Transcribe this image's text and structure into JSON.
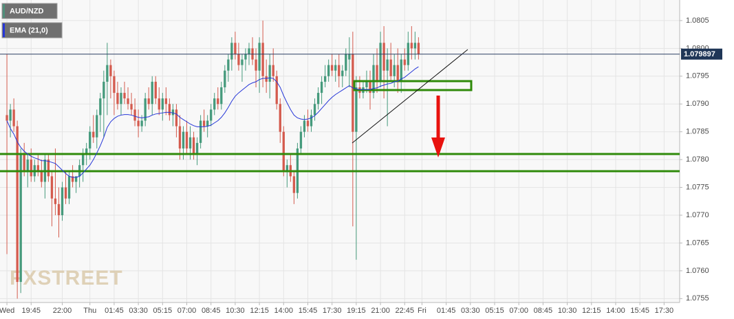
{
  "chart_data": {
    "type": "candlestick",
    "watermark": "FXSTREET",
    "x": [
      0,
      1,
      2,
      3,
      4,
      5,
      6,
      7,
      8,
      9,
      10,
      11,
      12,
      13,
      14,
      15,
      16,
      17,
      18,
      19,
      20,
      21,
      22,
      23,
      24,
      25,
      26,
      27,
      28,
      29,
      30,
      31,
      32,
      33,
      34,
      35,
      36,
      37,
      38,
      39,
      40,
      41,
      42,
      43,
      44,
      45,
      46,
      47,
      48,
      49,
      50,
      51,
      52,
      53,
      54,
      55,
      56,
      57,
      58,
      59,
      60,
      61,
      62,
      63,
      64,
      65,
      66,
      67,
      68,
      69,
      70,
      71,
      72,
      73,
      74,
      75,
      76,
      77,
      78,
      79,
      80,
      81,
      82,
      83,
      84,
      85,
      86,
      87,
      88,
      89,
      90,
      91,
      92,
      93,
      94,
      95,
      96,
      97,
      98,
      99,
      100,
      101,
      102,
      103,
      104,
      105,
      106,
      107,
      108,
      109,
      110,
      111,
      112,
      113,
      114,
      115,
      116,
      117,
      118,
      119
    ],
    "xlim": [
      -2,
      194.5
    ],
    "xticks": [
      {
        "value": 0,
        "label": "Wed"
      },
      {
        "value": 7,
        "label": "19:45"
      },
      {
        "value": 16,
        "label": "22:00"
      },
      {
        "value": 24,
        "label": "Thu"
      },
      {
        "value": 31,
        "label": "01:45"
      },
      {
        "value": 38,
        "label": "03:30"
      },
      {
        "value": 45,
        "label": "05:15"
      },
      {
        "value": 52,
        "label": "07:00"
      },
      {
        "value": 59,
        "label": "08:45"
      },
      {
        "value": 66,
        "label": "10:30"
      },
      {
        "value": 73,
        "label": "12:15"
      },
      {
        "value": 80,
        "label": "14:00"
      },
      {
        "value": 87,
        "label": "15:45"
      },
      {
        "value": 94,
        "label": "17:30"
      },
      {
        "value": 101,
        "label": "19:15"
      },
      {
        "value": 108,
        "label": "21:00"
      },
      {
        "value": 115,
        "label": "22:45"
      },
      {
        "value": 120,
        "label": "Fri"
      },
      {
        "value": 127,
        "label": "01:45"
      },
      {
        "value": 134,
        "label": "03:30"
      },
      {
        "value": 141,
        "label": "05:15"
      },
      {
        "value": 148,
        "label": "07:00"
      },
      {
        "value": 155,
        "label": "08:45"
      },
      {
        "value": 162,
        "label": "10:30"
      },
      {
        "value": 169,
        "label": "12:15"
      },
      {
        "value": 176,
        "label": "14:00"
      },
      {
        "value": 183,
        "label": "15:45"
      },
      {
        "value": 190,
        "label": "17:30"
      }
    ],
    "ylim": [
      1.07543,
      1.08087
    ],
    "yticks": [
      1.0755,
      {
        "value": 1.076,
        "label": "1.0760"
      },
      1.0765,
      {
        "value": 1.077,
        "label": "1.0770"
      },
      1.0775,
      {
        "value": 1.078,
        "label": "1.0780"
      },
      1.0785,
      {
        "value": 1.079,
        "label": "1.0790"
      },
      1.0795,
      {
        "value": 1.08,
        "label": "1.0800"
      },
      1.0805
    ],
    "grid": true,
    "last_price": 1.079897,
    "series": [
      {
        "name": "AUD/NZD",
        "color": "#4f8f7a",
        "color_up": "#459a7c",
        "color_down": "#d45b4e",
        "open": [
          1.0788,
          1.0787,
          1.0789,
          1.0786,
          1.0758,
          1.0781,
          1.0778,
          1.078,
          1.0777,
          1.0779,
          1.0778,
          1.0776,
          1.078,
          1.0777,
          1.0773,
          1.0772,
          1.077,
          1.0775,
          1.0773,
          1.0777,
          1.0776,
          1.0777,
          1.0779,
          1.0781,
          1.0782,
          1.0785,
          1.0784,
          1.0788,
          1.0791,
          1.0794,
          1.0797,
          1.0795,
          1.0792,
          1.079,
          1.0792,
          1.0791,
          1.079,
          1.0789,
          1.0787,
          1.0786,
          1.0787,
          1.0791,
          1.079,
          1.0794,
          1.0791,
          1.0789,
          1.0791,
          1.079,
          1.0788,
          1.0789,
          1.0786,
          1.0782,
          1.0785,
          1.0782,
          1.0784,
          1.0781,
          1.0783,
          1.0787,
          1.0786,
          1.0787,
          1.0789,
          1.0791,
          1.079,
          1.0793,
          1.0796,
          1.0798,
          1.0801,
          1.0799,
          1.0797,
          1.0798,
          1.0799,
          1.08,
          1.0798,
          1.0796,
          1.0801,
          1.0795,
          1.0794,
          1.0797,
          1.0795,
          1.079,
          1.0785,
          1.0778,
          1.0779,
          1.0777,
          1.0774,
          1.0782,
          1.0785,
          1.0787,
          1.0786,
          1.0788,
          1.079,
          1.0792,
          1.0794,
          1.0795,
          1.0797,
          1.0796,
          1.0797,
          1.0795,
          1.0796,
          1.0798,
          1.0799,
          1.0785,
          1.0793,
          1.0792,
          1.0793,
          1.0794,
          1.0792,
          1.0797,
          1.0794,
          1.0801,
          1.0796,
          1.0798,
          1.0795,
          1.0797,
          1.0794,
          1.0798,
          1.0797,
          1.0801,
          1.08,
          1.0801
        ],
        "high": [
          1.0799,
          1.079,
          1.0791,
          1.0787,
          1.0782,
          1.0783,
          1.0781,
          1.0782,
          1.078,
          1.0781,
          1.078,
          1.0781,
          1.0781,
          1.0778,
          1.0782,
          1.0775,
          1.0776,
          1.0778,
          1.0778,
          1.0779,
          1.0777,
          1.078,
          1.0782,
          1.0783,
          1.0786,
          1.0788,
          1.0789,
          1.0792,
          1.0796,
          1.0801,
          1.0798,
          1.0796,
          1.0794,
          1.0793,
          1.0794,
          1.0793,
          1.0792,
          1.0791,
          1.0789,
          1.0788,
          1.0792,
          1.0793,
          1.0795,
          1.0795,
          1.0793,
          1.0792,
          1.0793,
          1.0791,
          1.079,
          1.079,
          1.0788,
          1.0786,
          1.0787,
          1.0786,
          1.0785,
          1.0784,
          1.0788,
          1.0789,
          1.0788,
          1.079,
          1.0792,
          1.0793,
          1.0794,
          1.0797,
          1.0799,
          1.0802,
          1.0803,
          1.0801,
          1.0799,
          1.08,
          1.0801,
          1.0802,
          1.08,
          1.0802,
          1.0805,
          1.0798,
          1.0799,
          1.08,
          1.0796,
          1.0791,
          1.0786,
          1.078,
          1.0781,
          1.0778,
          1.0783,
          1.0786,
          1.0788,
          1.0789,
          1.0789,
          1.0791,
          1.0793,
          1.0795,
          1.0797,
          1.0798,
          1.0799,
          1.0798,
          1.0799,
          1.0797,
          1.08,
          1.0802,
          1.0803,
          1.0795,
          1.0795,
          1.0794,
          1.0796,
          1.0796,
          1.0799,
          1.08,
          1.0803,
          1.0804,
          1.08,
          1.0801,
          1.0799,
          1.08,
          1.0799,
          1.08,
          1.0803,
          1.0804,
          1.0803,
          1.0802
        ],
        "low": [
          1.0763,
          1.0784,
          1.0785,
          1.0755,
          1.0756,
          1.0777,
          1.0775,
          1.0776,
          1.0776,
          1.0777,
          1.0775,
          1.0773,
          1.0776,
          1.0768,
          1.077,
          1.0766,
          1.0769,
          1.0772,
          1.0772,
          1.0775,
          1.0774,
          1.0775,
          1.0776,
          1.0779,
          1.078,
          1.0783,
          1.0782,
          1.0785,
          1.0784,
          1.0788,
          1.0791,
          1.0788,
          1.0789,
          1.0788,
          1.079,
          1.0789,
          1.0788,
          1.0786,
          1.0784,
          1.0785,
          1.0786,
          1.0789,
          1.0788,
          1.079,
          1.0788,
          1.0787,
          1.0788,
          1.0787,
          1.0786,
          1.0784,
          1.078,
          1.078,
          1.0781,
          1.078,
          1.078,
          1.0779,
          1.0782,
          1.0785,
          1.0784,
          1.0786,
          1.0788,
          1.0789,
          1.0789,
          1.0792,
          1.0794,
          1.0796,
          1.0798,
          1.0796,
          1.0794,
          1.0796,
          1.0797,
          1.0797,
          1.0793,
          1.0792,
          1.0793,
          1.0792,
          1.0791,
          1.0794,
          1.0789,
          1.0783,
          1.0777,
          1.0775,
          1.0776,
          1.0772,
          1.0773,
          1.0781,
          1.0784,
          1.0785,
          1.0785,
          1.0787,
          1.0789,
          1.079,
          1.0793,
          1.0794,
          1.0795,
          1.0794,
          1.0793,
          1.0793,
          1.0795,
          1.0793,
          1.0768,
          1.0762,
          1.0791,
          1.0791,
          1.0792,
          1.0789,
          1.0791,
          1.0792,
          1.0793,
          1.0791,
          1.0786,
          1.0794,
          1.0793,
          1.0792,
          1.0792,
          1.0796,
          1.0796,
          1.0798,
          1.0798,
          1.0798
        ],
        "close": [
          1.0787,
          1.0789,
          1.0786,
          1.0758,
          1.0781,
          1.0778,
          1.078,
          1.0777,
          1.0779,
          1.0778,
          1.0776,
          1.078,
          1.0777,
          1.0773,
          1.0772,
          1.077,
          1.0775,
          1.0773,
          1.0777,
          1.0776,
          1.0777,
          1.0779,
          1.0781,
          1.0782,
          1.0785,
          1.0784,
          1.0788,
          1.0791,
          1.0794,
          1.0797,
          1.0795,
          1.0792,
          1.079,
          1.0792,
          1.0791,
          1.079,
          1.0789,
          1.0787,
          1.0786,
          1.0787,
          1.0791,
          1.079,
          1.0794,
          1.0791,
          1.0789,
          1.0791,
          1.079,
          1.0788,
          1.0789,
          1.0786,
          1.0782,
          1.0785,
          1.0782,
          1.0784,
          1.0781,
          1.0783,
          1.0787,
          1.0786,
          1.0787,
          1.0789,
          1.0791,
          1.079,
          1.0793,
          1.0796,
          1.0798,
          1.0801,
          1.0799,
          1.0797,
          1.0798,
          1.0799,
          1.08,
          1.0798,
          1.0796,
          1.0801,
          1.0795,
          1.0794,
          1.0797,
          1.0795,
          1.079,
          1.0785,
          1.0778,
          1.0779,
          1.0777,
          1.0774,
          1.0782,
          1.0785,
          1.0787,
          1.0786,
          1.0788,
          1.079,
          1.0792,
          1.0794,
          1.0795,
          1.0797,
          1.0796,
          1.0797,
          1.0795,
          1.0796,
          1.0799,
          1.0799,
          1.0785,
          1.0793,
          1.0792,
          1.0793,
          1.0794,
          1.0792,
          1.0797,
          1.0794,
          1.0801,
          1.0796,
          1.0798,
          1.0795,
          1.0797,
          1.0794,
          1.0798,
          1.0797,
          1.0801,
          1.08,
          1.0801,
          1.0799
        ]
      },
      {
        "name": "EMA (21,0)",
        "color": "#2536d8",
        "values": [
          1.0787,
          1.07856,
          1.07846,
          1.07832,
          1.07822,
          1.07815,
          1.0781,
          1.07806,
          1.07803,
          1.07801,
          1.07798,
          1.07798,
          1.07797,
          1.07795,
          1.07793,
          1.07787,
          1.07781,
          1.07775,
          1.0777,
          1.07768,
          1.07768,
          1.0777,
          1.07776,
          1.07783,
          1.0779,
          1.078,
          1.07812,
          1.07825,
          1.0784,
          1.07858,
          1.07868,
          1.07874,
          1.07878,
          1.0788,
          1.07881,
          1.07881,
          1.0788,
          1.07878,
          1.07876,
          1.07875,
          1.07876,
          1.07877,
          1.0788,
          1.07882,
          1.07883,
          1.07884,
          1.07885,
          1.07885,
          1.07884,
          1.07882,
          1.07876,
          1.07872,
          1.07868,
          1.07864,
          1.07861,
          1.07859,
          1.07859,
          1.07859,
          1.0786,
          1.07862,
          1.07866,
          1.0787,
          1.07876,
          1.07884,
          1.07894,
          1.07905,
          1.07914,
          1.0792,
          1.07925,
          1.0793,
          1.07935,
          1.07938,
          1.0794,
          1.07944,
          1.07946,
          1.07946,
          1.07947,
          1.07946,
          1.0794,
          1.0793,
          1.07915,
          1.07902,
          1.0789,
          1.0788,
          1.07875,
          1.07873,
          1.07872,
          1.07873,
          1.07875,
          1.07879,
          1.07885,
          1.07892,
          1.07899,
          1.07906,
          1.07912,
          1.07917,
          1.07921,
          1.07925,
          1.07929,
          1.07933,
          1.07929,
          1.07927,
          1.07926,
          1.07926,
          1.07926,
          1.07926,
          1.07928,
          1.07929,
          1.07932,
          1.07934,
          1.07936,
          1.07937,
          1.0794,
          1.07941,
          1.07945,
          1.07948,
          1.07953,
          1.07958,
          1.07963,
          1.07967
        ]
      }
    ]
  }
}
